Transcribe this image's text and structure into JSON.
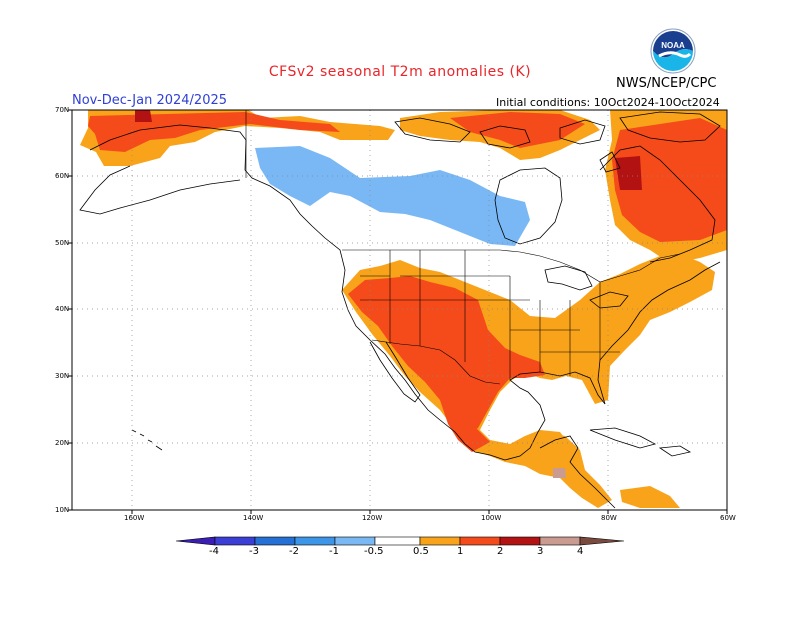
{
  "header": {
    "title": "CFSv2 seasonal T2m anomalies (K)",
    "season": "Nov-Dec-Jan 2024/2025",
    "agency": "NWS/NCEP/CPC",
    "initial_conditions": "Initial conditions: 10Oct2024-10Oct2024"
  },
  "logo": {
    "name": "noaa-logo",
    "text": "NOAA"
  },
  "map": {
    "lat_ticks": [
      "70N",
      "60N",
      "50N",
      "40N",
      "30N",
      "20N",
      "10N"
    ],
    "lon_ticks": [
      "160W",
      "140W",
      "120W",
      "100W",
      "80W",
      "60W"
    ],
    "region": "North America",
    "grid_lines": "dotted"
  },
  "colorbar": {
    "labels": [
      "-4",
      "-3",
      "-2",
      "-1",
      "-0.5",
      "0.5",
      "1",
      "2",
      "3",
      "4"
    ],
    "colors": [
      "#3b1eb3",
      "#3b3fd6",
      "#2470d4",
      "#3d95e8",
      "#7ab8f5",
      "#ffffff",
      "#f9a31a",
      "#f54b1a",
      "#b31212",
      "#c99b91",
      "#7a4a3e"
    ]
  },
  "colors": {
    "anom_05_1": "#f9a31a",
    "anom_1_2": "#f54b1a",
    "anom_2_3": "#b31212",
    "anom_neg_05_1": "#7ab8f5",
    "title": "#e8262b",
    "season": "#2f3fd6"
  }
}
